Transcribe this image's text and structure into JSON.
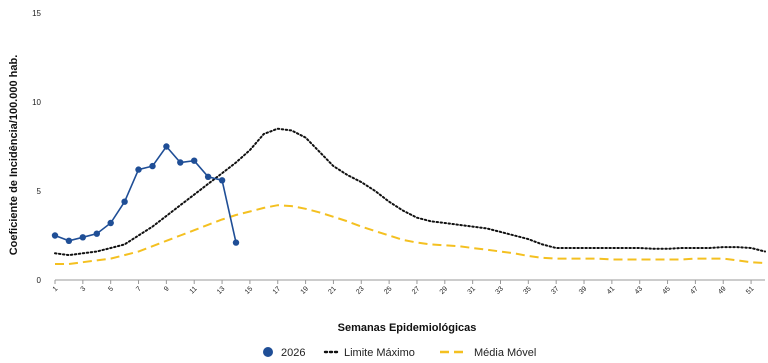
{
  "chart_data": {
    "type": "line",
    "xlabel": "Semanas Epidemiológicas",
    "ylabel": "Coeficiente de Incidência/100.000 hab.",
    "ylim": [
      0,
      15
    ],
    "yticks": [
      0,
      5,
      10,
      15
    ],
    "xlim": [
      1,
      52
    ],
    "xtick_labels": [
      "1",
      "3",
      "5",
      "7",
      "9",
      "11",
      "13",
      "15",
      "17",
      "19",
      "21",
      "23",
      "25",
      "27",
      "29",
      "31",
      "33",
      "35",
      "37",
      "39",
      "41",
      "43",
      "45",
      "47",
      "49",
      "51"
    ],
    "legend_position": "bottom",
    "grid": false,
    "series": [
      {
        "name": "2026",
        "style": "solid-markers",
        "color": "#1f4e96",
        "x": [
          1,
          2,
          3,
          4,
          5,
          6,
          7,
          8,
          9,
          10,
          11,
          12,
          13,
          14
        ],
        "values": [
          2.5,
          2.2,
          2.4,
          2.6,
          3.2,
          4.4,
          6.2,
          6.4,
          7.5,
          6.6,
          6.7,
          5.8,
          5.6,
          2.1
        ]
      },
      {
        "name": "Limite Máximo",
        "style": "dotted",
        "color": "#111111",
        "x": [
          1,
          2,
          3,
          4,
          5,
          6,
          7,
          8,
          9,
          10,
          11,
          12,
          13,
          14,
          15,
          16,
          17,
          18,
          19,
          20,
          21,
          22,
          23,
          24,
          25,
          26,
          27,
          28,
          29,
          30,
          31,
          32,
          33,
          34,
          35,
          36,
          37,
          38,
          39,
          40,
          41,
          42,
          43,
          44,
          45,
          46,
          47,
          48,
          49,
          50,
          51,
          52
        ],
        "values": [
          1.5,
          1.4,
          1.5,
          1.6,
          1.8,
          2.0,
          2.5,
          3.0,
          3.6,
          4.2,
          4.8,
          5.4,
          6.0,
          6.6,
          7.3,
          8.2,
          8.5,
          8.4,
          8.0,
          7.2,
          6.4,
          5.9,
          5.5,
          5.0,
          4.4,
          3.9,
          3.5,
          3.3,
          3.2,
          3.1,
          3.0,
          2.9,
          2.7,
          2.5,
          2.3,
          2.0,
          1.8,
          1.8,
          1.8,
          1.8,
          1.8,
          1.8,
          1.8,
          1.75,
          1.75,
          1.8,
          1.8,
          1.8,
          1.85,
          1.85,
          1.8,
          1.6
        ]
      },
      {
        "name": "Média Móvel",
        "style": "dashed",
        "color": "#f4c020",
        "x": [
          1,
          2,
          3,
          4,
          5,
          6,
          7,
          8,
          9,
          10,
          11,
          12,
          13,
          14,
          15,
          16,
          17,
          18,
          19,
          20,
          21,
          22,
          23,
          24,
          25,
          26,
          27,
          28,
          29,
          30,
          31,
          32,
          33,
          34,
          35,
          36,
          37,
          38,
          39,
          40,
          41,
          42,
          43,
          44,
          45,
          46,
          47,
          48,
          49,
          50,
          51,
          52
        ],
        "values": [
          0.9,
          0.9,
          1.0,
          1.1,
          1.2,
          1.4,
          1.6,
          1.9,
          2.2,
          2.5,
          2.8,
          3.1,
          3.4,
          3.65,
          3.85,
          4.05,
          4.2,
          4.15,
          4.0,
          3.8,
          3.55,
          3.3,
          3.0,
          2.75,
          2.5,
          2.25,
          2.1,
          2.0,
          1.95,
          1.9,
          1.8,
          1.7,
          1.6,
          1.5,
          1.35,
          1.25,
          1.2,
          1.2,
          1.2,
          1.2,
          1.15,
          1.15,
          1.15,
          1.15,
          1.15,
          1.15,
          1.2,
          1.2,
          1.2,
          1.1,
          1.0,
          0.95
        ]
      }
    ]
  },
  "legend": {
    "item_2026": "2026",
    "item_limite": "Limite Máximo",
    "item_media": "Média Móvel"
  }
}
